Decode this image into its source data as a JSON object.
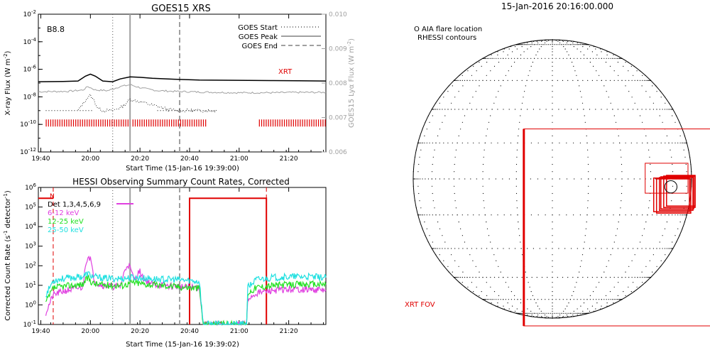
{
  "chart_data": [
    {
      "type": "line",
      "title": "GOES15 XRS",
      "xlabel": "Start Time (15-Jan-16 19:39:00)",
      "ylabel": "X-ray Flux (W m-2)",
      "y2label": "GOES15 Lyα Flux (W m-2)",
      "x_ticks": [
        "19:40",
        "20:00",
        "20:20",
        "20:40",
        "21:00",
        "21:20"
      ],
      "x_tick_minutes": [
        1,
        21,
        41,
        61,
        81,
        101
      ],
      "xlim_minutes": [
        0,
        116
      ],
      "y_scale": "log",
      "y_ticks": [
        "10-12",
        "10-10",
        "10-8",
        "10-6",
        "10-4",
        "10-2"
      ],
      "y_tick_exponents": [
        -12,
        -10,
        -8,
        -6,
        -4,
        -2
      ],
      "ylim_exponent": [
        -12,
        -2
      ],
      "y2_ticks": [
        "0.006",
        "0.007",
        "0.008",
        "0.009",
        "0.010"
      ],
      "y2lim": [
        0.006,
        0.01
      ],
      "class_label": "B8.8",
      "xrt_label": "XRT",
      "legend": {
        "placement": "top-right",
        "entries": [
          {
            "label": "GOES Start",
            "style": "dotted"
          },
          {
            "label": "GOES Peak",
            "style": "solid"
          },
          {
            "label": "GOES End",
            "style": "dashed"
          }
        ]
      },
      "event_lines_minutes": {
        "start": 30,
        "peak": 37,
        "end": 57
      },
      "series": [
        {
          "name": "long",
          "color": "#000000",
          "x": [
            0,
            10,
            16,
            19,
            21,
            23,
            26,
            30,
            33,
            37,
            41,
            46,
            55,
            65,
            80,
            95,
            105,
            116
          ],
          "exp": [
            -6.9,
            -6.88,
            -6.85,
            -6.5,
            -6.35,
            -6.5,
            -6.85,
            -6.9,
            -6.7,
            -6.55,
            -6.58,
            -6.65,
            -6.72,
            -6.78,
            -6.8,
            -6.82,
            -6.83,
            -6.85
          ]
        },
        {
          "name": "lyman-alpha",
          "color": "#a0a0a0",
          "x": [
            0,
            12,
            18,
            20,
            23,
            28,
            33,
            37,
            42,
            48,
            55,
            65,
            80,
            95,
            105,
            116
          ],
          "y2": [
            0.00775,
            0.00776,
            0.0078,
            0.0079,
            0.0078,
            0.00778,
            0.0079,
            0.00795,
            0.00785,
            0.00778,
            0.00776,
            0.00774,
            0.00772,
            0.00772,
            0.00773,
            0.00773
          ]
        },
        {
          "name": "short",
          "color": "#000000",
          "x": [
            16,
            18,
            19.5,
            21,
            22.5,
            24,
            26,
            28,
            30,
            34,
            37,
            40,
            44,
            48,
            52,
            56,
            60,
            66,
            72
          ],
          "exp": [
            -9.0,
            -8.5,
            -8.1,
            -7.9,
            -8.3,
            -8.8,
            -9.0,
            -9.0,
            -9.0,
            -8.7,
            -8.2,
            -8.3,
            -8.5,
            -8.7,
            -8.9,
            -9.0,
            -9.0,
            -9.0,
            -9.0
          ]
        }
      ],
      "baseline_dots": {
        "exp": -9.0,
        "x_ranges": [
          [
            3,
            22
          ],
          [
            48,
            72
          ]
        ]
      },
      "xrt_bar_ranges_minutes": [
        [
          3,
          37
        ],
        [
          38,
          68
        ],
        [
          89,
          116
        ]
      ]
    },
    {
      "type": "line",
      "title": "HESSI Observing Summary Count Rates, Corrected",
      "xlabel": "Start Time (15-Jan-16 19:39:02)",
      "ylabel": "Corrected Count Rate (s-1 detector-1)",
      "x_ticks": [
        "19:40",
        "20:00",
        "20:20",
        "20:40",
        "21:00",
        "21:20"
      ],
      "x_tick_minutes": [
        1,
        21,
        41,
        61,
        81,
        101
      ],
      "xlim_minutes": [
        0,
        116
      ],
      "y_scale": "log",
      "y_ticks": [
        "10-1",
        "10^0",
        "10^1",
        "10^2",
        "10^3",
        "10^4",
        "10^5",
        "10^6"
      ],
      "y_tick_exponents": [
        -1,
        0,
        1,
        2,
        3,
        4,
        5,
        6
      ],
      "ylim_exponent": [
        -1,
        6
      ],
      "night_flag": "N",
      "detectors_label": "Det 1,3,4,5,6,9",
      "legend": {
        "placement": "top-left",
        "entries": [
          {
            "label": "6-12 keV",
            "color": "#e040e0"
          },
          {
            "label": "12-25 keV",
            "color": "#20e020"
          },
          {
            "label": "25-50 keV",
            "color": "#20e0e0"
          }
        ]
      },
      "event_lines_minutes": {
        "start": 30,
        "peak": 37,
        "end": 57
      },
      "night_dashed_minutes": [
        6,
        92
      ],
      "attenuator_state": {
        "x_ranges": [
          [
            0,
            6
          ],
          [
            61,
            92
          ]
        ],
        "high_exp": 5.45,
        "low_exp": -1
      },
      "series": [
        {
          "name": "6-12 keV",
          "color": "#e040e0",
          "x": [
            3,
            6,
            10,
            14,
            18,
            19,
            20,
            21,
            22,
            23,
            24,
            26,
            30,
            33,
            35,
            36,
            37,
            38,
            39,
            40,
            41,
            42,
            44,
            46,
            50,
            55,
            60,
            65,
            66.5,
            73,
            84,
            84.5,
            88,
            95,
            105,
            116
          ],
          "exp": [
            -0.4,
            0.5,
            0.7,
            0.8,
            0.9,
            2.1,
            2.5,
            2.4,
            1.6,
            1.2,
            1.1,
            1.0,
            0.95,
            0.95,
            1.8,
            2.1,
            1.9,
            1.5,
            1.3,
            1.6,
            1.7,
            1.4,
            1.2,
            1.05,
            1.0,
            0.95,
            0.9,
            0.9,
            -1,
            -1,
            -1,
            0.3,
            0.6,
            0.75,
            0.8,
            0.75
          ]
        },
        {
          "name": "12-25 keV",
          "color": "#20e020",
          "x": [
            3,
            6,
            10,
            14,
            18,
            20,
            22,
            24,
            28,
            34,
            38,
            44,
            50,
            55,
            60,
            65,
            66.5,
            73,
            84,
            84.5,
            88,
            95,
            105,
            116
          ],
          "exp": [
            0.1,
            0.85,
            0.95,
            1.0,
            1.05,
            1.4,
            1.1,
            1.05,
            1.0,
            1.0,
            1.15,
            1.05,
            1.0,
            0.95,
            0.9,
            0.85,
            -1,
            -1,
            -1,
            0.6,
            0.9,
            1.0,
            1.05,
            1.05
          ]
        },
        {
          "name": "25-50 keV",
          "color": "#20e0e0",
          "x": [
            3,
            6,
            10,
            14,
            18,
            20,
            22,
            24,
            28,
            34,
            38,
            44,
            50,
            55,
            60,
            65,
            66.5,
            73,
            84,
            84.5,
            88,
            95,
            105,
            116
          ],
          "exp": [
            0.5,
            1.25,
            1.35,
            1.4,
            1.45,
            1.6,
            1.45,
            1.4,
            1.35,
            1.35,
            1.4,
            1.35,
            1.3,
            1.3,
            1.25,
            1.2,
            -1,
            -1,
            -1,
            0.9,
            1.3,
            1.4,
            1.45,
            1.4
          ]
        }
      ]
    },
    {
      "type": "scatter",
      "title": "15-Jan-2016 20:16:00.000",
      "legend_lines": [
        "O AIA flare location",
        "RHESSI contours"
      ],
      "fov_label": "XRT FOV",
      "solar_grid_spacing_deg": 15,
      "xrt_fov_boxes": [
        {
          "name": "large",
          "x": [
            -200,
            1150
          ],
          "y": [
            -1030,
            350
          ]
        },
        {
          "name": "medium",
          "x": [
            650,
            950
          ],
          "y": [
            -100,
            110
          ]
        },
        {
          "name": "small-1",
          "x": [
            710,
            960
          ],
          "y": [
            -230,
            6
          ]
        },
        {
          "name": "small-2",
          "x": [
            730,
            970
          ],
          "y": [
            -240,
            0
          ]
        },
        {
          "name": "small-3",
          "x": [
            750,
            985
          ],
          "y": [
            -220,
            10
          ]
        },
        {
          "name": "small-4",
          "x": [
            760,
            990
          ],
          "y": [
            -210,
            15
          ]
        },
        {
          "name": "small-5",
          "x": [
            780,
            1000
          ],
          "y": [
            -200,
            20
          ]
        },
        {
          "name": "small-6",
          "x": [
            800,
            1000
          ],
          "y": [
            -190,
            25
          ]
        }
      ],
      "flare_circle": {
        "center": [
          830,
          -55
        ],
        "radius": 45
      }
    }
  ]
}
